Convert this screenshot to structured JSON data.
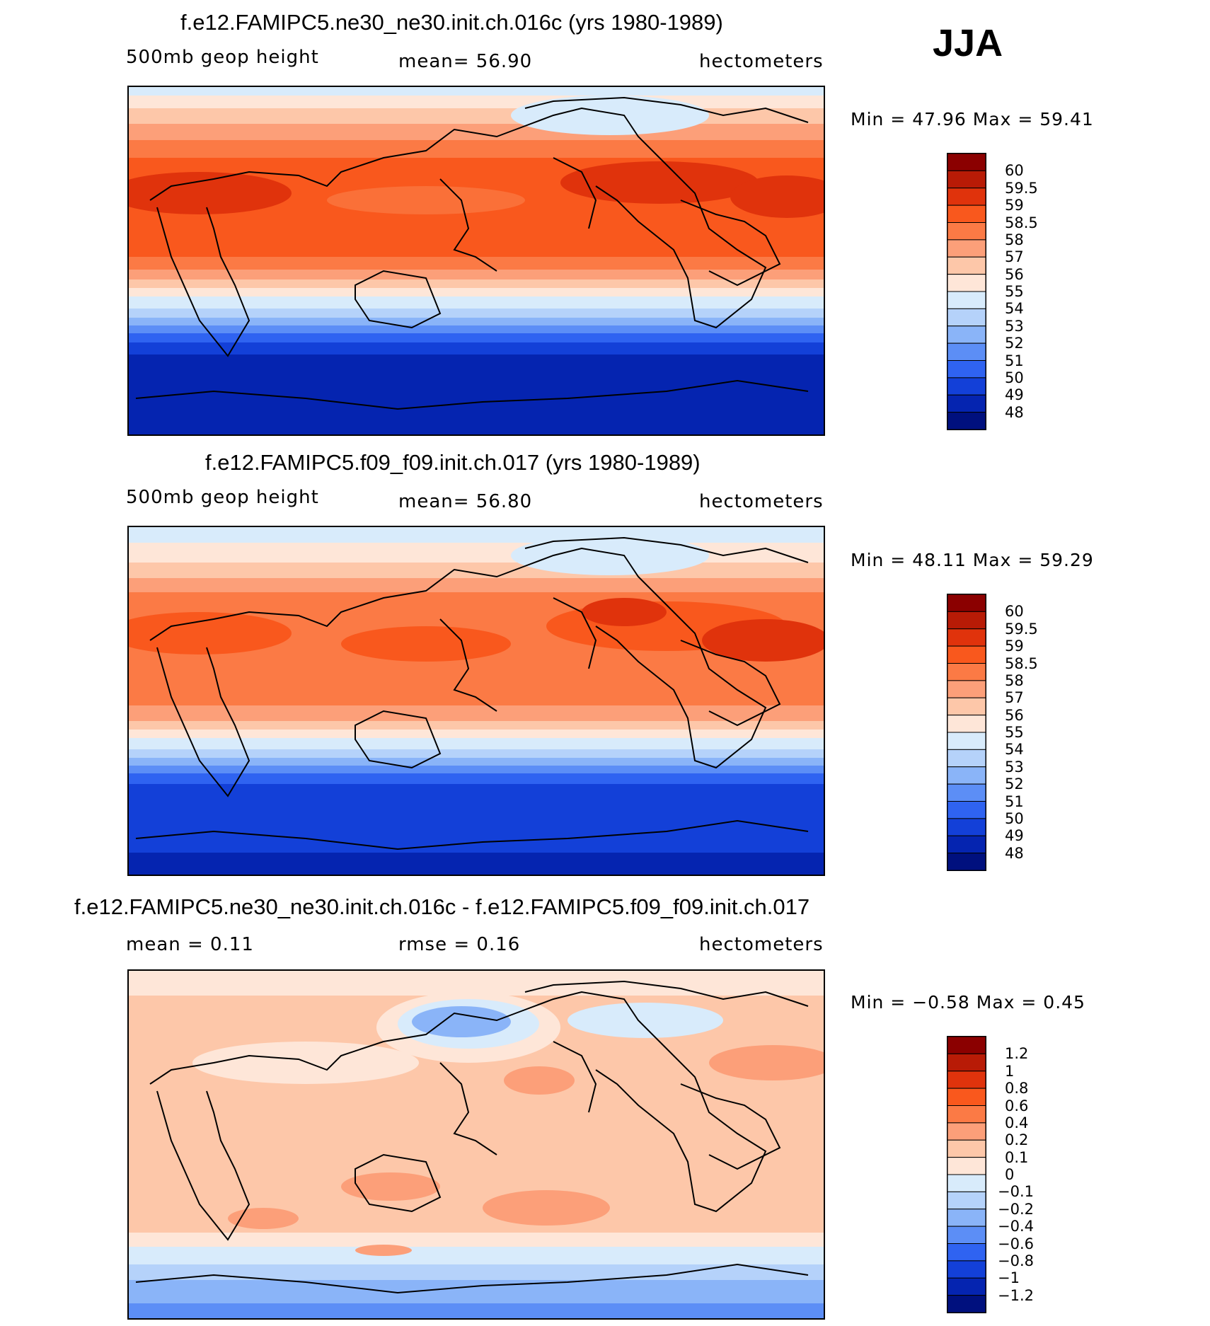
{
  "season": "JJA",
  "panels": [
    {
      "title": "f.e12.FAMIPC5.ne30_ne30.init.ch.016c (yrs 1980-1989)",
      "left_label": "500mb  geop  height",
      "center_label": "mean=   56.90",
      "right_label": "hectometers",
      "minmax": "Min  =    47.96  Max  =    59.41",
      "colorbar_labels": [
        "60",
        "59.5",
        "59",
        "58.5",
        "58",
        "57",
        "56",
        "55",
        "54",
        "53",
        "52",
        "51",
        "50",
        "49",
        "48"
      ],
      "colors": [
        "#8b0000",
        "#b81b06",
        "#e0330c",
        "#f9581d",
        "#fb7a45",
        "#fc9f79",
        "#fdc7a9",
        "#fee6d8",
        "#d8ebfb",
        "#b5d2fa",
        "#8ab4f8",
        "#5c8ef6",
        "#2f63f1",
        "#1340d8",
        "#0524b0",
        "#00107e"
      ],
      "kind": "abs1"
    },
    {
      "title": "f.e12.FAMIPC5.f09_f09.init.ch.017 (yrs 1980-1989)",
      "left_label": "500mb  geop  height",
      "center_label": "mean=   56.80",
      "right_label": "hectometers",
      "minmax": "Min  =    48.11  Max  =    59.29",
      "colorbar_labels": [
        "60",
        "59.5",
        "59",
        "58.5",
        "58",
        "57",
        "56",
        "55",
        "54",
        "53",
        "52",
        "51",
        "50",
        "49",
        "48"
      ],
      "colors": [
        "#8b0000",
        "#b81b06",
        "#e0330c",
        "#f9581d",
        "#fb7a45",
        "#fc9f79",
        "#fdc7a9",
        "#fee6d8",
        "#d8ebfb",
        "#b5d2fa",
        "#8ab4f8",
        "#5c8ef6",
        "#2f63f1",
        "#1340d8",
        "#0524b0",
        "#00107e"
      ],
      "kind": "abs2"
    },
    {
      "title": "f.e12.FAMIPC5.ne30_ne30.init.ch.016c - f.e12.FAMIPC5.f09_f09.init.ch.017",
      "left_label": "mean  =     0.11",
      "center_label": "rmse  =     0.16",
      "right_label": "hectometers",
      "minmax": "Min  =   −0.58  Max  =     0.45",
      "colorbar_labels": [
        "1.2",
        "1",
        "0.8",
        "0.6",
        "0.4",
        "0.2",
        "0.1",
        "0",
        "−0.1",
        "−0.2",
        "−0.4",
        "−0.6",
        "−0.8",
        "−1",
        "−1.2"
      ],
      "colors": [
        "#8b0000",
        "#b81b06",
        "#e0330c",
        "#f9581d",
        "#fb7a45",
        "#fc9f79",
        "#fdc7a9",
        "#fee6d8",
        "#d8ebfb",
        "#b5d2fa",
        "#8ab4f8",
        "#5c8ef6",
        "#2f63f1",
        "#1340d8",
        "#0524b0",
        "#00107e"
      ],
      "kind": "diff"
    }
  ]
}
